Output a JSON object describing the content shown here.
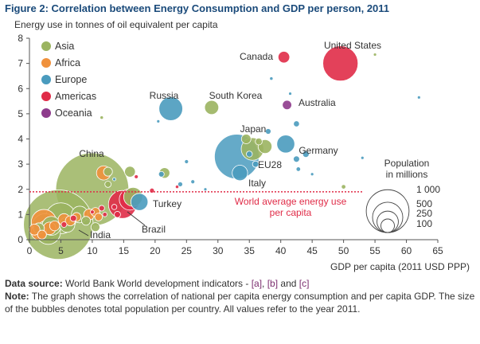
{
  "figure": {
    "title": "Figure 2: Correlation between Energy Consumption and GDP per person, 2011"
  },
  "chart_data": {
    "type": "scatter",
    "title": "Figure 2: Correlation between Energy Consumption and GDP per person, 2011",
    "ylabel": "Energy use in tonnes of oil equivalent per capita",
    "xlabel": "GDP per capita (2011 USD PPP)",
    "xlim": [
      0,
      65
    ],
    "ylim": [
      0,
      8
    ],
    "xticks": [
      "0",
      "5",
      "10",
      "15",
      "20",
      "25",
      "30",
      "35",
      "40",
      "45",
      "50",
      "55",
      "60",
      "65"
    ],
    "yticks": [
      "0",
      "1",
      "2",
      "3",
      "4",
      "5",
      "6",
      "7",
      "8"
    ],
    "grid": false,
    "legend": {
      "placement": "top-left",
      "entries": [
        {
          "name": "Asia",
          "color": "#9bb460"
        },
        {
          "name": "Africa",
          "color": "#f0913c"
        },
        {
          "name": "Europe",
          "color": "#4a9bbe"
        },
        {
          "name": "Americas",
          "color": "#e02c48"
        },
        {
          "name": "Oceania",
          "color": "#8e3b8c"
        }
      ]
    },
    "reference_line": {
      "y": 1.9,
      "label_lines": [
        "World average energy use",
        "per capita"
      ],
      "color": "#e02c48"
    },
    "size_legend": {
      "title_lines": [
        "Population",
        "in millions"
      ],
      "labels": [
        "1 000",
        "500",
        "250",
        "100"
      ],
      "values": [
        1000,
        500,
        250,
        100
      ]
    },
    "points": [
      {
        "region": "Asia",
        "x": 10.0,
        "y": 2.0,
        "pop": 1344,
        "label": "China"
      },
      {
        "region": "Asia",
        "x": 4.6,
        "y": 0.6,
        "pop": 1221,
        "label": "India"
      },
      {
        "region": "Europe",
        "x": 22.5,
        "y": 5.2,
        "pop": 142,
        "label": "Russia"
      },
      {
        "region": "Asia",
        "x": 29.0,
        "y": 5.25,
        "pop": 50,
        "label": "South Korea"
      },
      {
        "region": "Americas",
        "x": 40.5,
        "y": 7.25,
        "pop": 34,
        "label": "Canada"
      },
      {
        "region": "Americas",
        "x": 49.5,
        "y": 7.0,
        "pop": 312,
        "label": "United States"
      },
      {
        "region": "Oceania",
        "x": 41.0,
        "y": 5.35,
        "pop": 22,
        "label": "Australia"
      },
      {
        "region": "Asia",
        "x": 35.5,
        "y": 3.6,
        "pop": 128,
        "label": "Japan"
      },
      {
        "region": "Europe",
        "x": 40.8,
        "y": 3.8,
        "pop": 81,
        "label": "Germany"
      },
      {
        "region": "Europe",
        "x": 33.0,
        "y": 3.3,
        "pop": 503,
        "label": "EU28"
      },
      {
        "region": "Europe",
        "x": 33.5,
        "y": 2.65,
        "pop": 60,
        "label": "Italy"
      },
      {
        "region": "Europe",
        "x": 17.5,
        "y": 1.5,
        "pop": 74,
        "label": "Turkey"
      },
      {
        "region": "Americas",
        "x": 14.8,
        "y": 1.4,
        "pop": 197,
        "label": "Brazil"
      },
      {
        "region": "Americas",
        "x": 16.0,
        "y": 1.6,
        "pop": 115,
        "label": ""
      },
      {
        "region": "Asia",
        "x": 12.5,
        "y": 2.7,
        "pop": 20,
        "label": ""
      },
      {
        "region": "Africa",
        "x": 11.8,
        "y": 2.65,
        "pop": 51,
        "label": ""
      },
      {
        "region": "Asia",
        "x": 16.0,
        "y": 2.7,
        "pop": 29,
        "label": ""
      },
      {
        "region": "Asia",
        "x": 16.5,
        "y": 1.7,
        "pop": 90,
        "label": ""
      },
      {
        "region": "Asia",
        "x": 21.5,
        "y": 2.65,
        "pop": 28,
        "label": ""
      },
      {
        "region": "Europe",
        "x": 21.0,
        "y": 2.6,
        "pop": 8,
        "label": ""
      },
      {
        "region": "Asia",
        "x": 34.5,
        "y": 4.0,
        "pop": 23,
        "label": ""
      },
      {
        "region": "Asia",
        "x": 37.5,
        "y": 3.7,
        "pop": 48,
        "label": ""
      },
      {
        "region": "Asia",
        "x": 36.5,
        "y": 3.9,
        "pop": 12,
        "label": ""
      },
      {
        "region": "Europe",
        "x": 38.0,
        "y": 4.3,
        "pop": 8,
        "label": ""
      },
      {
        "region": "Europe",
        "x": 42.5,
        "y": 3.2,
        "pop": 10,
        "label": ""
      },
      {
        "region": "Europe",
        "x": 42.5,
        "y": 4.6,
        "pop": 9,
        "label": ""
      },
      {
        "region": "Europe",
        "x": 44.0,
        "y": 3.4,
        "pop": 11,
        "label": ""
      },
      {
        "region": "Europe",
        "x": 42.8,
        "y": 2.8,
        "pop": 5,
        "label": ""
      },
      {
        "region": "Europe",
        "x": 36.0,
        "y": 3.0,
        "pop": 10,
        "label": ""
      },
      {
        "region": "Europe",
        "x": 35.0,
        "y": 3.4,
        "pop": 9,
        "label": ""
      },
      {
        "region": "Europe",
        "x": 25.0,
        "y": 3.1,
        "pop": 4,
        "label": ""
      },
      {
        "region": "Europe",
        "x": 24.0,
        "y": 2.2,
        "pop": 6,
        "label": ""
      },
      {
        "region": "Europe",
        "x": 26.0,
        "y": 2.3,
        "pop": 4,
        "label": ""
      },
      {
        "region": "Europe",
        "x": 20.5,
        "y": 4.7,
        "pop": 2,
        "label": ""
      },
      {
        "region": "Europe",
        "x": 38.5,
        "y": 6.4,
        "pop": 3,
        "label": ""
      },
      {
        "region": "Europe",
        "x": 41.5,
        "y": 5.8,
        "pop": 2,
        "label": ""
      },
      {
        "region": "Europe",
        "x": 62.0,
        "y": 5.65,
        "pop": 1,
        "label": ""
      },
      {
        "region": "Europe",
        "x": 53.0,
        "y": 3.25,
        "pop": 2,
        "label": ""
      },
      {
        "region": "Europe",
        "x": 45.0,
        "y": 2.6,
        "pop": 1,
        "label": ""
      },
      {
        "region": "Europe",
        "x": 13.5,
        "y": 2.4,
        "pop": 2,
        "label": ""
      },
      {
        "region": "Europe",
        "x": 28.0,
        "y": 2.0,
        "pop": 1,
        "label": ""
      },
      {
        "region": "Asia",
        "x": 55.0,
        "y": 7.35,
        "pop": 2,
        "label": ""
      },
      {
        "region": "Asia",
        "x": 50.0,
        "y": 2.1,
        "pop": 5,
        "label": ""
      },
      {
        "region": "Asia",
        "x": 11.5,
        "y": 4.85,
        "pop": 3,
        "label": ""
      },
      {
        "region": "Asia",
        "x": 12.5,
        "y": 2.2,
        "pop": 10,
        "label": ""
      },
      {
        "region": "Americas",
        "x": 19.5,
        "y": 1.95,
        "pop": 6,
        "label": ""
      },
      {
        "region": "Americas",
        "x": 17.0,
        "y": 2.5,
        "pop": 4,
        "label": ""
      },
      {
        "region": "Americas",
        "x": 23.5,
        "y": 2.1,
        "pop": 3,
        "label": ""
      },
      {
        "region": "Americas",
        "x": 12.0,
        "y": 1.0,
        "pop": 5,
        "label": ""
      },
      {
        "region": "Americas",
        "x": 10.0,
        "y": 1.1,
        "pop": 4,
        "label": ""
      },
      {
        "region": "Americas",
        "x": 14.0,
        "y": 1.0,
        "pop": 10,
        "label": ""
      },
      {
        "region": "Americas",
        "x": 13.5,
        "y": 1.3,
        "pop": 7,
        "label": ""
      },
      {
        "region": "Americas",
        "x": 11.5,
        "y": 1.25,
        "pop": 8,
        "label": ""
      },
      {
        "region": "Asia",
        "x": 1.5,
        "y": 0.45,
        "pop": 30,
        "label": ""
      },
      {
        "region": "Asia",
        "x": 3.0,
        "y": 0.3,
        "pop": 150,
        "label": ""
      },
      {
        "region": "Asia",
        "x": 2.5,
        "y": 0.5,
        "pop": 180,
        "label": ""
      },
      {
        "region": "Asia",
        "x": 5.0,
        "y": 0.85,
        "pop": 240,
        "label": ""
      },
      {
        "region": "Asia",
        "x": 6.0,
        "y": 0.6,
        "pop": 60,
        "label": ""
      },
      {
        "region": "Asia",
        "x": 8.0,
        "y": 1.0,
        "pop": 70,
        "label": ""
      },
      {
        "region": "Asia",
        "x": 9.0,
        "y": 0.75,
        "pop": 20,
        "label": ""
      },
      {
        "region": "Africa",
        "x": 0.8,
        "y": 0.4,
        "pop": 30,
        "label": ""
      },
      {
        "region": "Africa",
        "x": 1.5,
        "y": 0.3,
        "pop": 60,
        "label": ""
      },
      {
        "region": "Africa",
        "x": 2.3,
        "y": 0.7,
        "pop": 160,
        "label": ""
      },
      {
        "region": "Africa",
        "x": 3.2,
        "y": 0.45,
        "pop": 40,
        "label": ""
      },
      {
        "region": "Africa",
        "x": 4.0,
        "y": 0.55,
        "pop": 25,
        "label": ""
      },
      {
        "region": "Africa",
        "x": 5.5,
        "y": 0.8,
        "pop": 35,
        "label": ""
      },
      {
        "region": "Africa",
        "x": 6.5,
        "y": 0.75,
        "pop": 25,
        "label": ""
      },
      {
        "region": "Africa",
        "x": 7.5,
        "y": 0.9,
        "pop": 20,
        "label": ""
      },
      {
        "region": "Africa",
        "x": 9.5,
        "y": 1.0,
        "pop": 30,
        "label": ""
      },
      {
        "region": "Africa",
        "x": 10.5,
        "y": 1.1,
        "pop": 20,
        "label": ""
      },
      {
        "region": "Africa",
        "x": 11.0,
        "y": 0.9,
        "pop": 15,
        "label": ""
      },
      {
        "region": "Africa",
        "x": 2.0,
        "y": 0.2,
        "pop": 20,
        "label": ""
      },
      {
        "region": "Americas",
        "x": 7.0,
        "y": 0.85,
        "pop": 10,
        "label": ""
      },
      {
        "region": "Americas",
        "x": 5.5,
        "y": 0.6,
        "pop": 8,
        "label": ""
      },
      {
        "region": "Asia",
        "x": 3.5,
        "y": 0.55,
        "pop": 90,
        "label": ""
      },
      {
        "region": "Asia",
        "x": 10.5,
        "y": 0.5,
        "pop": 20,
        "label": ""
      }
    ]
  },
  "notes": {
    "source_label": "Data source:",
    "source_text": " World Bank World development indicators - ",
    "ref_a": "[a]",
    "sep1": ", ",
    "ref_b": "[b]",
    "sep2": " and ",
    "ref_c": "[c]",
    "note_label": "Note:",
    "note_text": " The graph shows the correlation of national per capita energy consumption and per capita GDP. The size of the bubbles denotes total population per country. All values refer to the year 2011."
  }
}
